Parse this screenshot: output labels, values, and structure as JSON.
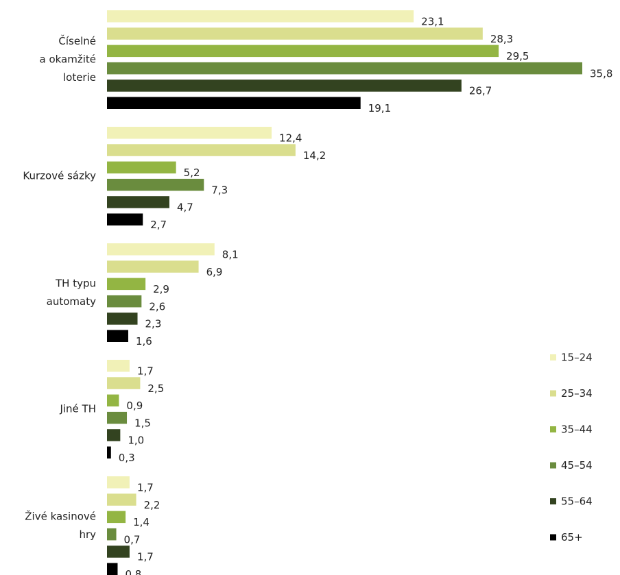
{
  "chart_data": {
    "type": "bar",
    "orientation": "horizontal",
    "categories": [
      [
        "Číselné",
        "a okamžité",
        "loterie"
      ],
      [
        "Kurzové sázky"
      ],
      [
        "TH typu",
        "automaty"
      ],
      [
        "Jiné TH"
      ],
      [
        "Živé kasinové",
        "hry"
      ]
    ],
    "series": [
      {
        "name": "15–24",
        "color": "#f1f1b7",
        "values": [
          23.1,
          12.4,
          8.1,
          1.7,
          1.7
        ],
        "labels": [
          "23,1",
          "12,4",
          "8,1",
          "1,7",
          "1,7"
        ]
      },
      {
        "name": "25–34",
        "color": "#dade8e",
        "values": [
          28.3,
          14.2,
          6.9,
          2.5,
          2.2
        ],
        "labels": [
          "28,3",
          "14,2",
          "6,9",
          "2,5",
          "2,2"
        ]
      },
      {
        "name": "35–44",
        "color": "#93b543",
        "values": [
          29.5,
          5.2,
          2.9,
          0.9,
          1.4
        ],
        "labels": [
          "29,5",
          "5,2",
          "2,9",
          "0,9",
          "1,4"
        ]
      },
      {
        "name": "45–54",
        "color": "#6a8c3e",
        "values": [
          35.8,
          7.3,
          2.6,
          1.5,
          0.7
        ],
        "labels": [
          "35,8",
          "7,3",
          "2,6",
          "1,5",
          "0,7"
        ]
      },
      {
        "name": "55–64",
        "color": "#334320",
        "values": [
          26.7,
          4.7,
          2.3,
          1.0,
          1.7
        ],
        "labels": [
          "26,7",
          "4,7",
          "2,3",
          "1,0",
          "1,7"
        ]
      },
      {
        "name": "65+",
        "color": "#000000",
        "values": [
          19.1,
          2.7,
          1.6,
          0.3,
          0.8
        ],
        "labels": [
          "19,1",
          "2,7",
          "1,6",
          "0,3",
          "0,8"
        ]
      }
    ],
    "xlim": [
      0,
      35.8
    ],
    "grid": false,
    "legend": "right"
  }
}
